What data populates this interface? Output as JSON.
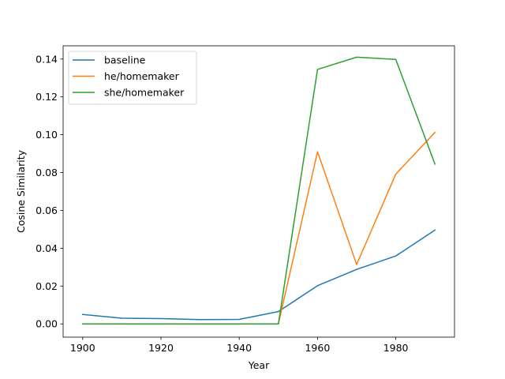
{
  "chart_data": {
    "type": "line",
    "title": "",
    "xlabel": "Year",
    "ylabel": "Cosine Similarity",
    "x": [
      1900,
      1910,
      1920,
      1930,
      1940,
      1950,
      1960,
      1970,
      1980,
      1990
    ],
    "xlim": [
      1895,
      1995
    ],
    "ylim": [
      -0.007,
      0.147
    ],
    "xticks": [
      1900,
      1920,
      1940,
      1960,
      1980
    ],
    "xtick_labels": [
      "1900",
      "1920",
      "1940",
      "1960",
      "1980"
    ],
    "yticks": [
      0.0,
      0.02,
      0.04,
      0.06,
      0.08,
      0.1,
      0.12,
      0.14
    ],
    "ytick_labels": [
      "0.00",
      "0.02",
      "0.04",
      "0.06",
      "0.08",
      "0.10",
      "0.12",
      "0.14"
    ],
    "grid": false,
    "legend_position": "top-left",
    "series": [
      {
        "name": "baseline",
        "color": "#1f77b4",
        "values": [
          0.005,
          0.003,
          0.0028,
          0.0023,
          0.0024,
          0.0065,
          0.0202,
          0.0288,
          0.0359,
          0.0496
        ]
      },
      {
        "name": "he/homemaker",
        "color": "#ff7f0e",
        "values": [
          0.0,
          0.0,
          0.0,
          0.0,
          0.0,
          0.0,
          0.091,
          0.0314,
          0.0792,
          0.1012
        ]
      },
      {
        "name": "she/homemaker",
        "color": "#2ca02c",
        "values": [
          0.0,
          0.0,
          0.0,
          0.0,
          0.0,
          0.0,
          0.1345,
          0.141,
          0.1398,
          0.0845
        ]
      }
    ]
  }
}
